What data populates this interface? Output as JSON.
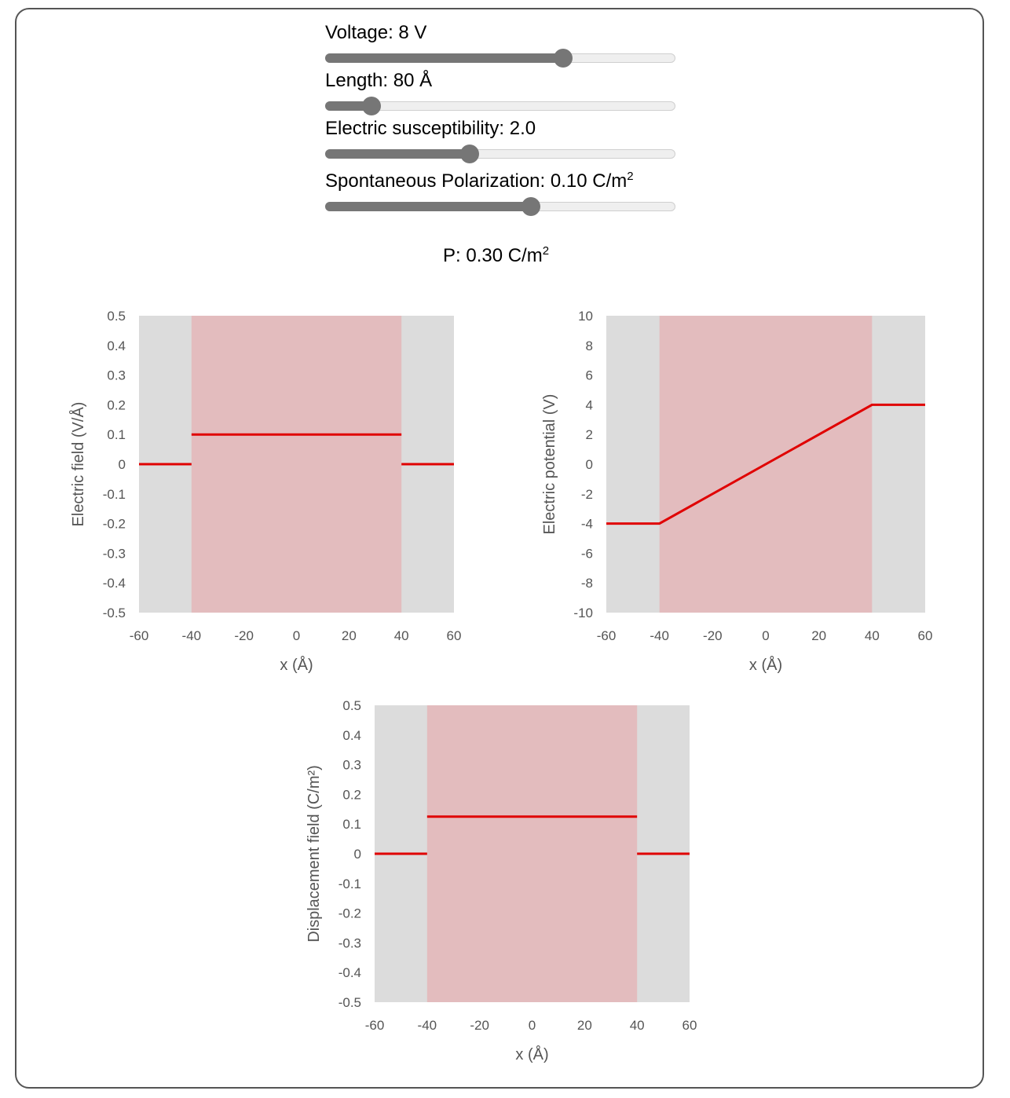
{
  "controls": {
    "voltage": {
      "label": "Voltage: 8 V",
      "value": 8,
      "min": 0,
      "max": 11.6
    },
    "length": {
      "label": "Length: 80 Å",
      "value": 80,
      "min": 40,
      "max": 400
    },
    "susceptibility": {
      "label": "Electric susceptibility: 2.0",
      "value": 2.0,
      "min": 0,
      "max": 4.9
    },
    "polarization": {
      "label_prefix": "Spontaneous Polarization: 0.10 C/m",
      "label_sup": "2",
      "value": 0.1,
      "min": -0.3,
      "max": 0.375
    }
  },
  "readout": {
    "prefix": "P: 0.30 C/m",
    "sup": "2"
  },
  "colors": {
    "line": "#e00000",
    "material": "#e3bcbe",
    "vacuum": "#dcdcdc",
    "axis_text": "#555555"
  },
  "chart_data": [
    {
      "type": "line",
      "id": "efield",
      "xlabel": "x (Å)",
      "ylabel": "Electric field (V/Å)",
      "xlim": [
        -60,
        60
      ],
      "ylim": [
        -0.5,
        0.5
      ],
      "xticks": [
        "-60",
        "-40",
        "-20",
        "0",
        "20",
        "40",
        "60"
      ],
      "yticks": [
        "0.5",
        "0.4",
        "0.3",
        "0.2",
        "0.1",
        "0",
        "-0.1",
        "-0.2",
        "-0.3",
        "-0.4",
        "-0.5"
      ],
      "material_region": [
        -40,
        40
      ],
      "segments": [
        {
          "x": [
            -60,
            -40
          ],
          "y": [
            0,
            0
          ]
        },
        {
          "x": [
            -40,
            40
          ],
          "y": [
            0.1,
            0.1
          ]
        },
        {
          "x": [
            40,
            60
          ],
          "y": [
            0,
            0
          ]
        }
      ]
    },
    {
      "type": "line",
      "id": "potential",
      "xlabel": "x (Å)",
      "ylabel": "Electric potential (V)",
      "xlim": [
        -60,
        60
      ],
      "ylim": [
        -10,
        10
      ],
      "xticks": [
        "-60",
        "-40",
        "-20",
        "0",
        "20",
        "40",
        "60"
      ],
      "yticks": [
        "10",
        "8",
        "6",
        "4",
        "2",
        "0",
        "-2",
        "-4",
        "-6",
        "-8",
        "-10"
      ],
      "material_region": [
        -40,
        40
      ],
      "segments": [
        {
          "x": [
            -60,
            -40,
            40,
            60
          ],
          "y": [
            -4,
            -4,
            4,
            4
          ]
        }
      ]
    },
    {
      "type": "line",
      "id": "displacement",
      "xlabel": "x (Å)",
      "ylabel": "Displacement field (C/m²)",
      "xlim": [
        -60,
        60
      ],
      "ylim": [
        -0.5,
        0.5
      ],
      "xticks": [
        "-60",
        "-40",
        "-20",
        "0",
        "20",
        "40",
        "60"
      ],
      "yticks": [
        "0.5",
        "0.4",
        "0.3",
        "0.2",
        "0.1",
        "0",
        "-0.1",
        "-0.2",
        "-0.3",
        "-0.4",
        "-0.5"
      ],
      "material_region": [
        -40,
        40
      ],
      "segments": [
        {
          "x": [
            -60,
            -40
          ],
          "y": [
            0,
            0
          ]
        },
        {
          "x": [
            -40,
            40
          ],
          "y": [
            0.125,
            0.125
          ]
        },
        {
          "x": [
            40,
            60
          ],
          "y": [
            0,
            0
          ]
        }
      ]
    }
  ]
}
